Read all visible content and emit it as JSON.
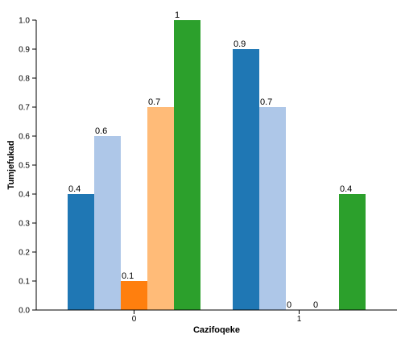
{
  "chart_data": {
    "type": "bar",
    "title": "",
    "xlabel": "Cazifoqeke",
    "ylabel": "Tumjefukad",
    "categories": [
      "0",
      "1"
    ],
    "ylim": [
      0,
      1.0
    ],
    "yticks": [
      "0.0",
      "0.1",
      "0.2",
      "0.3",
      "0.4",
      "0.5",
      "0.6",
      "0.7",
      "0.8",
      "0.9",
      "1.0"
    ],
    "series": [
      {
        "color": "#1f77b4",
        "values": [
          0.4,
          0.9
        ],
        "labels": [
          "0.4",
          "0.9"
        ]
      },
      {
        "color": "#aec7e8",
        "values": [
          0.6,
          0.7
        ],
        "labels": [
          "0.6",
          "0.7"
        ]
      },
      {
        "color": "#ff7f0e",
        "values": [
          0.1,
          0
        ],
        "labels": [
          "0.1",
          "0"
        ]
      },
      {
        "color": "#ffbb78",
        "values": [
          0.7,
          0
        ],
        "labels": [
          "0.7",
          "0"
        ]
      },
      {
        "color": "#2ca02c",
        "values": [
          1,
          0.4
        ],
        "labels": [
          "1",
          "0.4"
        ]
      }
    ],
    "grid": false,
    "legend": "none"
  }
}
